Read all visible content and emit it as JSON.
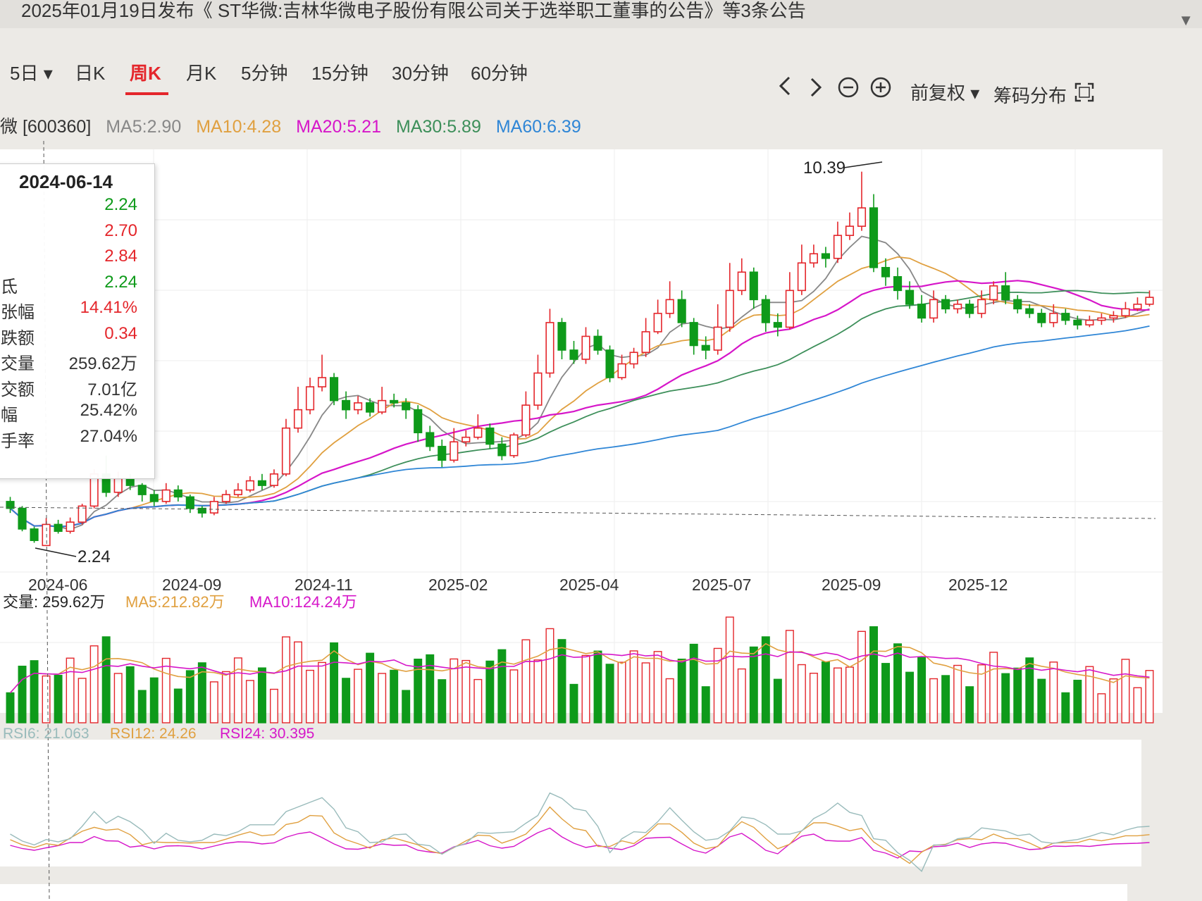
{
  "banner": {
    "text": "2025年01月19日发布《 ST华微:吉林华微电子股份有限公司关于选举职工董事的公告》等3条公告"
  },
  "tabs": [
    {
      "label": "5日",
      "dropdown": true
    },
    {
      "label": "日K"
    },
    {
      "label": "周K",
      "active": true
    },
    {
      "label": "月K"
    },
    {
      "label": "5分钟"
    },
    {
      "label": "15分钟"
    },
    {
      "label": "30分钟"
    },
    {
      "label": "60分钟"
    }
  ],
  "tools": {
    "prev_icon": "chevron-left-icon",
    "next_icon": "chevron-right-icon",
    "zoom_out_icon": "zoom-out-icon",
    "zoom_in_icon": "zoom-in-icon",
    "adjust_label": "前复权",
    "chip_label": "筹码分布",
    "fullscreen_icon": "fullscreen-icon"
  },
  "ma_legend": {
    "stock": "微 [600360]",
    "ma5": "MA5:2.90",
    "ma10": "MA10:4.28",
    "ma20": "MA20:5.21",
    "ma30": "MA30:5.89",
    "ma60": "MA60:6.39"
  },
  "colors": {
    "up": "#e4262b",
    "down": "#0e9a1a",
    "ma5": "#888888",
    "ma10": "#e0a040",
    "ma20": "#d616c9",
    "ma30": "#3d8f5a",
    "ma60": "#2f86d6"
  },
  "tooltip": {
    "date": "2024-06-14",
    "rows": [
      {
        "label": "",
        "value": "2.24",
        "color": "#0e9a1a"
      },
      {
        "label": "",
        "value": "2.70",
        "color": "#e4262b"
      },
      {
        "label": "",
        "value": "2.84",
        "color": "#e4262b"
      },
      {
        "label": "氐",
        "value": "2.24",
        "color": "#0e9a1a"
      },
      {
        "label": "张幅",
        "value": "14.41%",
        "color": "#e4262b"
      },
      {
        "label": "跌额",
        "value": "0.34",
        "color": "#e4262b"
      },
      {
        "label": "交量",
        "value": "259.62万",
        "color": "#333333"
      },
      {
        "label": "交额",
        "value": "7.01亿",
        "color": "#333333"
      },
      {
        "label": "幅",
        "value": "25.42%",
        "color": "#333333"
      },
      {
        "label": "手率",
        "value": "27.04%",
        "color": "#333333"
      }
    ]
  },
  "chart_data": {
    "type": "candlestick",
    "high_label": "10.39",
    "low_label": "2.24",
    "x_ticks": [
      "2024-06",
      "2024-09",
      "2024-11",
      "2025-02",
      "2025-04",
      "2025-07",
      "2025-09",
      "2025-12"
    ],
    "candles": [
      [
        3.2,
        3.05,
        3.3,
        2.95
      ],
      [
        3.05,
        2.6,
        3.1,
        2.55
      ],
      [
        2.6,
        2.35,
        2.65,
        2.3
      ],
      [
        2.24,
        2.7,
        2.84,
        2.24
      ],
      [
        2.7,
        2.55,
        2.8,
        2.5
      ],
      [
        2.55,
        2.75,
        2.85,
        2.5
      ],
      [
        2.75,
        3.1,
        3.15,
        2.7
      ],
      [
        3.1,
        3.8,
        3.9,
        3.05
      ],
      [
        3.8,
        3.4,
        4.2,
        3.3
      ],
      [
        3.4,
        3.7,
        3.85,
        3.3
      ],
      [
        3.7,
        3.55,
        3.8,
        3.45
      ],
      [
        3.55,
        3.35,
        3.6,
        3.2
      ],
      [
        3.35,
        3.2,
        3.45,
        3.1
      ],
      [
        3.2,
        3.45,
        3.6,
        3.15
      ],
      [
        3.45,
        3.3,
        3.55,
        3.2
      ],
      [
        3.3,
        3.05,
        3.35,
        2.95
      ],
      [
        3.05,
        2.95,
        3.1,
        2.85
      ],
      [
        2.95,
        3.2,
        3.3,
        2.9
      ],
      [
        3.2,
        3.35,
        3.45,
        3.15
      ],
      [
        3.35,
        3.45,
        3.6,
        3.3
      ],
      [
        3.45,
        3.65,
        3.75,
        3.4
      ],
      [
        3.65,
        3.55,
        3.8,
        3.45
      ],
      [
        3.55,
        3.8,
        3.9,
        3.5
      ],
      [
        3.8,
        4.8,
        5.0,
        3.75
      ],
      [
        4.8,
        5.2,
        5.7,
        4.7
      ],
      [
        5.2,
        5.7,
        5.9,
        5.1
      ],
      [
        5.7,
        5.9,
        6.4,
        5.6
      ],
      [
        5.9,
        5.4,
        6.0,
        5.3
      ],
      [
        5.4,
        5.2,
        5.6,
        5.0
      ],
      [
        5.2,
        5.35,
        5.5,
        5.1
      ],
      [
        5.35,
        5.15,
        5.45,
        5.05
      ],
      [
        5.15,
        5.4,
        5.7,
        5.1
      ],
      [
        5.4,
        5.35,
        5.55,
        5.25
      ],
      [
        5.35,
        5.2,
        5.45,
        5.0
      ],
      [
        5.2,
        4.7,
        5.3,
        4.5
      ],
      [
        4.7,
        4.4,
        4.85,
        4.3
      ],
      [
        4.4,
        4.1,
        4.55,
        3.95
      ],
      [
        4.1,
        4.5,
        4.8,
        4.05
      ],
      [
        4.5,
        4.6,
        4.75,
        4.4
      ],
      [
        4.6,
        4.8,
        5.1,
        4.55
      ],
      [
        4.8,
        4.45,
        4.9,
        4.35
      ],
      [
        4.45,
        4.2,
        4.6,
        4.1
      ],
      [
        4.2,
        4.65,
        4.7,
        4.15
      ],
      [
        4.65,
        5.3,
        5.6,
        4.6
      ],
      [
        5.3,
        6.0,
        6.4,
        5.2
      ],
      [
        6.0,
        7.1,
        7.4,
        5.9
      ],
      [
        7.1,
        6.5,
        7.2,
        6.3
      ],
      [
        6.5,
        6.3,
        6.7,
        6.2
      ],
      [
        6.3,
        6.8,
        7.0,
        6.2
      ],
      [
        6.8,
        6.5,
        6.95,
        6.4
      ],
      [
        6.5,
        5.9,
        6.6,
        5.8
      ],
      [
        5.9,
        6.2,
        6.4,
        5.85
      ],
      [
        6.2,
        6.45,
        6.55,
        6.1
      ],
      [
        6.45,
        6.9,
        7.2,
        6.35
      ],
      [
        6.9,
        7.3,
        7.6,
        6.85
      ],
      [
        7.3,
        7.6,
        8.0,
        7.2
      ],
      [
        7.6,
        7.1,
        7.8,
        7.0
      ],
      [
        7.1,
        6.6,
        7.2,
        6.4
      ],
      [
        6.6,
        6.5,
        6.8,
        6.3
      ],
      [
        6.5,
        7.0,
        7.5,
        6.4
      ],
      [
        7.0,
        7.8,
        8.4,
        6.9
      ],
      [
        7.8,
        8.2,
        8.5,
        7.7
      ],
      [
        8.2,
        7.6,
        8.3,
        7.4
      ],
      [
        7.6,
        7.1,
        7.7,
        6.9
      ],
      [
        7.1,
        7.0,
        7.3,
        6.8
      ],
      [
        7.0,
        7.8,
        8.2,
        6.95
      ],
      [
        7.8,
        8.4,
        8.8,
        7.7
      ],
      [
        8.4,
        8.6,
        8.8,
        8.3
      ],
      [
        8.6,
        8.5,
        8.75,
        8.3
      ],
      [
        8.5,
        9.0,
        9.3,
        8.4
      ],
      [
        9.0,
        9.2,
        9.5,
        8.9
      ],
      [
        9.2,
        9.6,
        10.39,
        9.1
      ],
      [
        9.6,
        8.3,
        9.9,
        8.2
      ],
      [
        8.3,
        8.1,
        8.5,
        7.9
      ],
      [
        8.1,
        7.8,
        8.3,
        7.6
      ],
      [
        7.8,
        7.5,
        8.0,
        7.4
      ],
      [
        7.5,
        7.2,
        7.7,
        7.1
      ],
      [
        7.2,
        7.6,
        7.8,
        7.1
      ],
      [
        7.6,
        7.4,
        7.7,
        7.3
      ],
      [
        7.4,
        7.5,
        7.6,
        7.3
      ],
      [
        7.5,
        7.3,
        7.6,
        7.2
      ],
      [
        7.3,
        7.6,
        7.8,
        7.2
      ],
      [
        7.6,
        7.9,
        8.0,
        7.5
      ],
      [
        7.9,
        7.6,
        8.2,
        7.5
      ],
      [
        7.6,
        7.4,
        7.7,
        7.3
      ],
      [
        7.4,
        7.3,
        7.5,
        7.2
      ],
      [
        7.3,
        7.1,
        7.4,
        7.0
      ],
      [
        7.1,
        7.3,
        7.5,
        7.0
      ],
      [
        7.3,
        7.15,
        7.4,
        7.05
      ],
      [
        7.15,
        7.05,
        7.25,
        6.95
      ],
      [
        7.05,
        7.15,
        7.25,
        7.0
      ],
      [
        7.15,
        7.2,
        7.3,
        7.05
      ],
      [
        7.2,
        7.25,
        7.35,
        7.1
      ],
      [
        7.25,
        7.4,
        7.55,
        7.2
      ],
      [
        7.4,
        7.5,
        7.65,
        7.35
      ],
      [
        7.5,
        7.65,
        7.8,
        7.45
      ]
    ],
    "volume_label": "交量: 259.62万",
    "volume_ma5": "MA5:212.82万",
    "volume_ma10": "MA10:124.24万",
    "rsi6": "RSI6: 21.063",
    "rsi12": "RSI12: 24.26",
    "rsi24": "RSI24: 30.395"
  }
}
